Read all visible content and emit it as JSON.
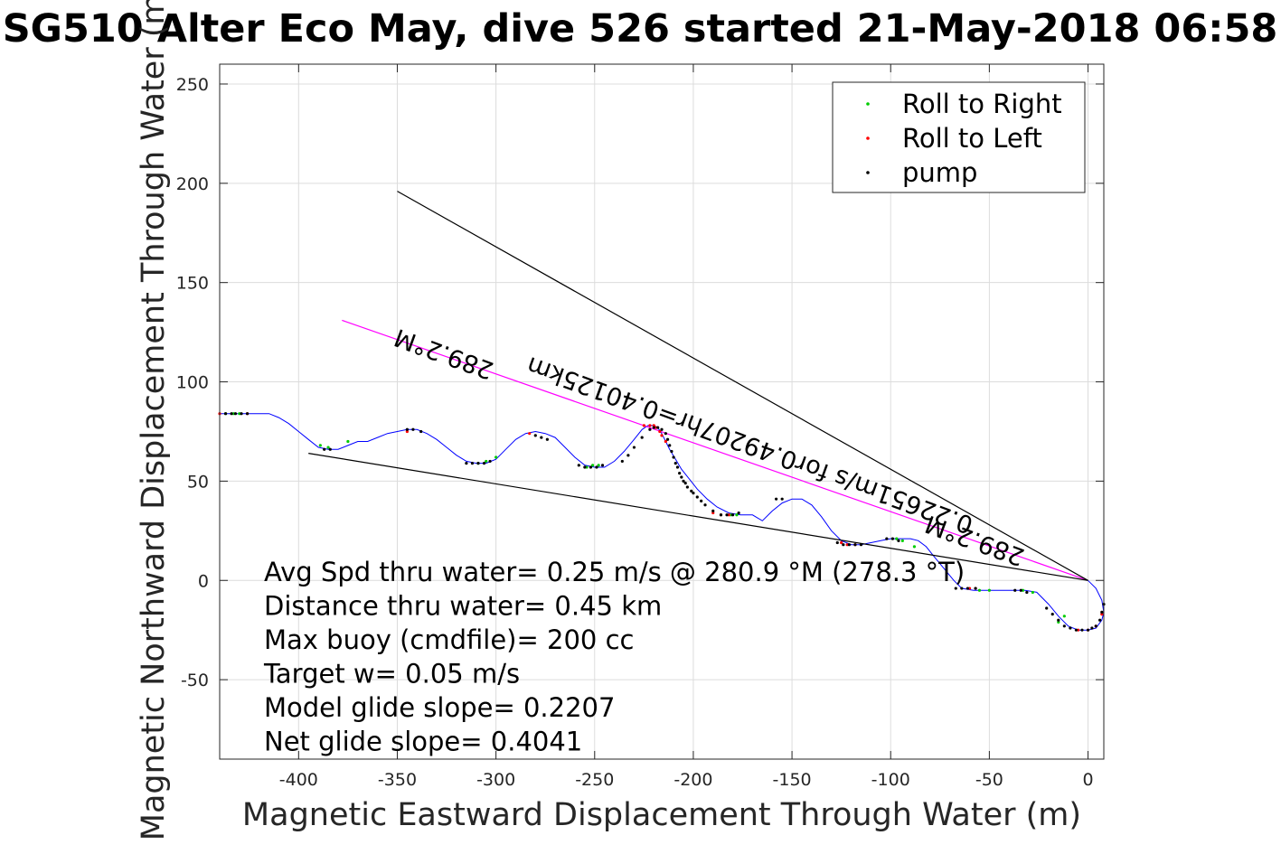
{
  "chart_data": {
    "type": "line",
    "title": "SG510 Alter Eco May, dive 526 started 21-May-2018 06:58",
    "xlabel": "Magnetic Eastward Displacement Through Water (m)",
    "ylabel": "Magnetic Northward Displacement Through Water (m)",
    "xlim": [
      -440,
      8
    ],
    "ylim": [
      -90,
      260
    ],
    "x_ticks": [
      -400,
      -350,
      -300,
      -250,
      -200,
      -150,
      -100,
      -50,
      0
    ],
    "x_tick_labels": [
      "-400",
      "-350",
      "-300",
      "-250",
      "-200",
      "-150",
      "-100",
      "-50",
      "0"
    ],
    "y_ticks": [
      -50,
      0,
      50,
      100,
      150,
      200,
      250
    ],
    "y_tick_labels": [
      "-50",
      "0",
      "50",
      "100",
      "150",
      "200",
      "250"
    ],
    "grid": true,
    "legend": {
      "placement": "top-right",
      "entries": [
        {
          "label": "Roll to Right",
          "color": "#00cc00"
        },
        {
          "label": "Roll to Left",
          "color": "#ff0000"
        },
        {
          "label": "pump",
          "color": "#000000"
        }
      ]
    },
    "series": [
      {
        "color": "#0000ff",
        "x": [
          0,
          4,
          7,
          8,
          7,
          4,
          0,
          -5,
          -10,
          -15,
          -20,
          -26,
          -32,
          -40,
          -50,
          -58,
          -64,
          -68,
          -73,
          -78,
          -82,
          -86,
          -90,
          -95,
          -100,
          -105,
          -110,
          -115,
          -120,
          -125,
          -130,
          -135,
          -140,
          -145,
          -150,
          -155,
          -160,
          -165,
          -170,
          -176,
          -182,
          -188,
          -193,
          -198,
          -202,
          -206,
          -209,
          -212,
          -214,
          -216,
          -218,
          -220,
          -223,
          -226,
          -230,
          -235,
          -240,
          -245,
          -250,
          -255,
          -260,
          -265,
          -270,
          -275,
          -280,
          -285,
          -290,
          -295,
          -300,
          -305,
          -310,
          -315,
          -320,
          -325,
          -330,
          -335,
          -340,
          -345,
          -350,
          -355,
          -360,
          -365,
          -370,
          -375,
          -380,
          -385,
          -390,
          -395,
          -400,
          -405,
          -410,
          -415,
          -420,
          -425,
          -430,
          -435,
          -440
        ],
        "y": [
          0,
          -4,
          -10,
          -16,
          -20,
          -24,
          -25,
          -25,
          -23,
          -18,
          -12,
          -6,
          -5,
          -5,
          -5,
          -5,
          -4,
          0,
          6,
          12,
          17,
          20,
          21,
          21,
          21,
          20,
          19,
          18,
          18,
          20,
          25,
          32,
          38,
          41,
          41,
          39,
          35,
          30,
          33,
          33,
          34,
          37,
          41,
          46,
          51,
          56,
          61,
          66,
          70,
          74,
          77,
          78,
          78,
          76,
          71,
          65,
          60,
          57,
          57,
          58,
          62,
          67,
          72,
          74,
          75,
          74,
          71,
          66,
          61,
          59,
          59,
          60,
          63,
          67,
          71,
          74,
          76,
          76,
          75,
          74,
          72,
          70,
          70,
          68,
          66,
          66,
          67,
          71,
          75,
          79,
          82,
          84,
          84,
          84,
          84,
          84,
          84
        ]
      },
      {
        "color": "#ff00ff",
        "x": [
          0,
          -378
        ],
        "y": [
          0,
          131
        ]
      },
      {
        "color": "#000000",
        "x": [
          0,
          -350
        ],
        "y": [
          0,
          196
        ]
      },
      {
        "color": "#000000",
        "x": [
          0,
          -395
        ],
        "y": [
          0,
          64
        ]
      }
    ],
    "roll_right_points": {
      "x": [
        -437,
        -433,
        -430,
        -389,
        -385,
        -375,
        -309,
        -305,
        -300,
        -254,
        -251,
        -248,
        -181,
        -178,
        -97,
        -94,
        -88,
        -55,
        -50,
        -33,
        -28,
        -15,
        -12
      ],
      "y": [
        84,
        84,
        84,
        68,
        67,
        70,
        59,
        60,
        62,
        57,
        58,
        58,
        33,
        33,
        21,
        20,
        17,
        -5,
        -5,
        -5,
        -6,
        -21,
        -18
      ]
    },
    "roll_left_points": {
      "x": [
        -440,
        -426,
        -345,
        -283,
        -225,
        -222,
        -220,
        -219,
        -217,
        -216,
        -214,
        -190,
        -186,
        -182,
        -125,
        -122,
        -118,
        -60,
        -57,
        -5,
        0,
        4,
        7
      ],
      "y": [
        84,
        84,
        75,
        74,
        78,
        78,
        78,
        77,
        75,
        73,
        70,
        34,
        33,
        33,
        19,
        18,
        18,
        -4,
        -4,
        -25,
        -25,
        -23,
        -17
      ]
    },
    "pump_points": {
      "x": [
        -437,
        -434,
        -432,
        -429,
        -426,
        -387,
        -384,
        -345,
        -342,
        -338,
        -315,
        -312,
        -309,
        -306,
        -303,
        -280,
        -277,
        -274,
        -258,
        -255,
        -252,
        -249,
        -246,
        -236,
        -233,
        -230,
        -226,
        -222,
        -220,
        -218,
        -216,
        -214,
        -213,
        -212,
        -211,
        -210,
        -209,
        -208,
        -207,
        -206,
        -205,
        -204,
        -203,
        -201,
        -200,
        -198,
        -196,
        -194,
        -190,
        -186,
        -183,
        -180,
        -177,
        -158,
        -155,
        -127,
        -124,
        -121,
        -118,
        -115,
        -102,
        -99,
        -96,
        -67,
        -64,
        -61,
        -57,
        -37,
        -34,
        -31,
        -21,
        -18,
        -15,
        -12,
        -9,
        -6,
        -3,
        0,
        2,
        4,
        6,
        7,
        8
      ],
      "y": [
        84,
        84,
        84,
        84,
        84,
        66,
        66,
        76,
        76,
        75,
        59,
        59,
        59,
        59,
        60,
        73,
        72,
        71,
        58,
        57,
        57,
        57,
        58,
        60,
        63,
        67,
        72,
        76,
        77,
        77,
        76,
        74,
        71,
        68,
        65,
        62,
        59,
        57,
        54,
        52,
        50,
        49,
        47,
        45,
        44,
        42,
        40,
        38,
        35,
        33,
        33,
        33,
        34,
        41,
        41,
        19,
        18,
        18,
        18,
        18,
        21,
        21,
        20,
        -4,
        -4,
        -4,
        -4,
        -5,
        -5,
        -6,
        -14,
        -17,
        -20,
        -23,
        -24,
        -25,
        -25,
        -25,
        -24,
        -23,
        -20,
        -16,
        -12
      ]
    },
    "annotations": [
      {
        "text": "289.2°M",
        "x": -325,
        "y": 118,
        "rotate": 200
      },
      {
        "text": "0.22651m/s for0.49207hr=0.40125km",
        "x": -170,
        "y": 72,
        "rotate": 200
      },
      {
        "text": "289.2°M",
        "x": -56,
        "y": 24,
        "rotate": 200
      }
    ],
    "stats": [
      "Avg Spd thru water=  0.25 m/s @ 280.9 °M (278.3 °T)",
      "Distance thru water=  0.45 km",
      "Max buoy (cmdfile)= 200 cc",
      "Target w= 0.05 m/s",
      "Model glide slope= 0.2207",
      "Net glide slope= 0.4041"
    ]
  }
}
